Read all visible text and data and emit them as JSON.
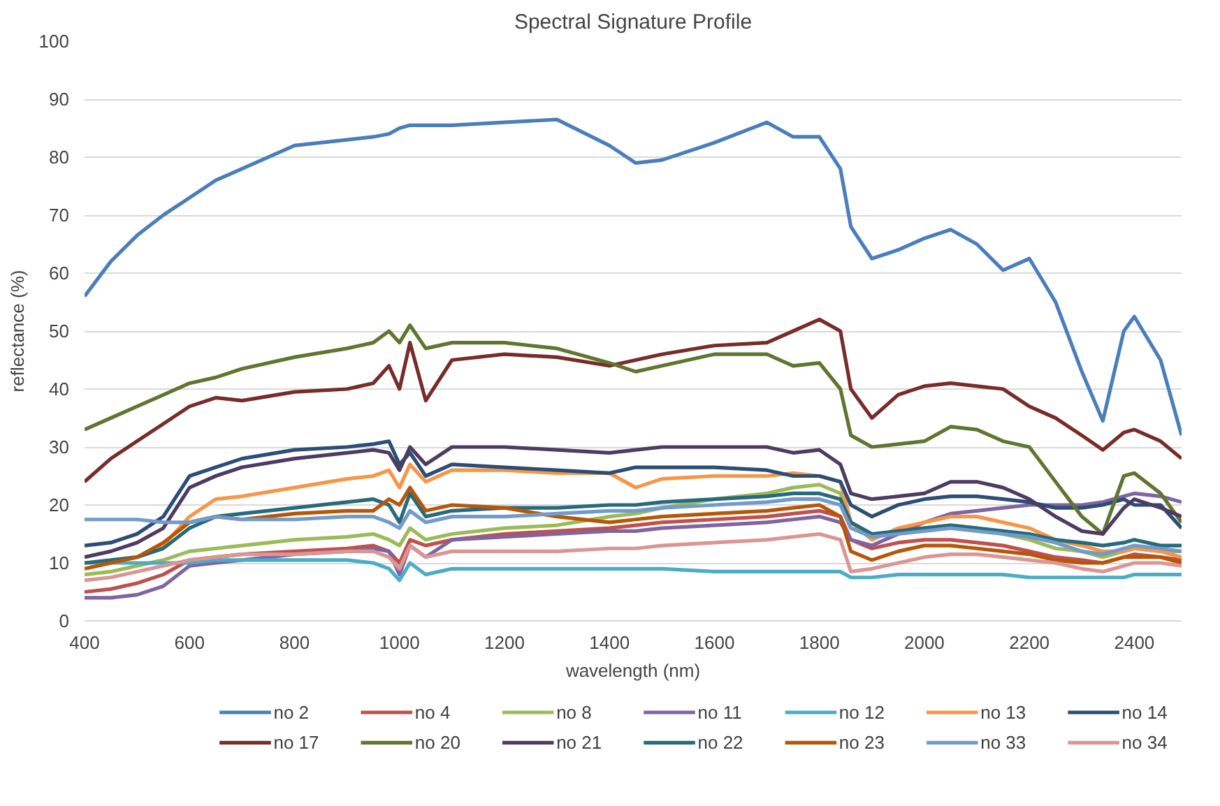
{
  "chart_data": {
    "type": "line",
    "title": "Spectral Signature Profile",
    "xlabel": "wavelength (nm)",
    "ylabel": "reflectance (%)",
    "x": [
      400,
      450,
      500,
      550,
      600,
      650,
      700,
      800,
      900,
      950,
      980,
      1000,
      1020,
      1050,
      1100,
      1200,
      1300,
      1400,
      1450,
      1500,
      1600,
      1700,
      1750,
      1800,
      1840,
      1860,
      1900,
      1950,
      2000,
      2050,
      2100,
      2150,
      2200,
      2250,
      2300,
      2340,
      2380,
      2400,
      2450,
      2490
    ],
    "xlim": [
      400,
      2490
    ],
    "xticks": [
      400,
      600,
      800,
      1000,
      1200,
      1400,
      1600,
      1800,
      2000,
      2200,
      2400
    ],
    "ylim": [
      0,
      100
    ],
    "yticks": [
      0,
      10,
      20,
      30,
      40,
      50,
      60,
      70,
      80,
      90,
      100
    ],
    "grid": "y",
    "legend": "bottom",
    "marker": "none",
    "line_style": "solid",
    "series": [
      {
        "name": "no 2",
        "color": "#4a7ebb",
        "values": [
          56,
          62,
          66.5,
          70,
          73,
          76,
          78,
          82,
          83,
          83.5,
          84,
          85,
          85.5,
          85.5,
          85.5,
          86,
          86.5,
          82,
          79,
          79.5,
          82.5,
          86,
          83.5,
          83.5,
          78,
          68,
          62.5,
          64,
          66,
          67.5,
          65,
          60.5,
          62.5,
          55,
          43,
          34.5,
          50,
          52.5,
          45,
          32
        ]
      },
      {
        "name": "no 4",
        "color": "#c0504d",
        "values": [
          5,
          5.5,
          6.5,
          8,
          10.5,
          11,
          11.5,
          12,
          12.5,
          13,
          12,
          10,
          14,
          13,
          14,
          15,
          15.5,
          16,
          16.5,
          17,
          17.5,
          18,
          18.5,
          19,
          18,
          14,
          12.5,
          13.5,
          14,
          14,
          13.5,
          13,
          12,
          11,
          10.5,
          10,
          11,
          11.5,
          11,
          10.5
        ]
      },
      {
        "name": "no 8",
        "color": "#9bbb59",
        "values": [
          8,
          8.5,
          9.5,
          10.5,
          12,
          12.5,
          13,
          14,
          14.5,
          15,
          14,
          13,
          16,
          14,
          15,
          16,
          16.5,
          18,
          18.5,
          19.5,
          21,
          22,
          23,
          23.5,
          22,
          17,
          14.5,
          15.5,
          16,
          16.5,
          16,
          15,
          14,
          12.5,
          12,
          11,
          12,
          12.5,
          12,
          12
        ]
      },
      {
        "name": "no 11",
        "color": "#8064a2",
        "values": [
          4,
          4,
          4.5,
          6,
          9.5,
          10,
          10.5,
          11.5,
          12,
          12.5,
          12,
          8,
          13,
          11,
          14,
          14.5,
          15,
          15.5,
          15.5,
          16,
          16.5,
          17,
          17.5,
          18,
          17,
          14,
          13,
          15,
          17,
          18.5,
          19,
          19.5,
          20,
          20,
          20,
          20.5,
          21.5,
          22,
          21.5,
          20.5
        ]
      },
      {
        "name": "no 12",
        "color": "#4bacc6",
        "values": [
          10,
          10,
          10,
          10,
          10,
          10.5,
          10.5,
          10.5,
          10.5,
          10,
          9,
          7,
          10,
          8,
          9,
          9,
          9,
          9,
          9,
          9,
          8.5,
          8.5,
          8.5,
          8.5,
          8.5,
          7.5,
          7.5,
          8,
          8,
          8,
          8,
          8,
          7.5,
          7.5,
          7.5,
          7.5,
          7.5,
          8,
          8,
          8
        ]
      },
      {
        "name": "no 13",
        "color": "#f79646",
        "values": [
          9,
          10,
          11,
          13,
          18,
          21,
          21.5,
          23,
          24.5,
          25,
          26,
          23,
          27,
          24,
          26,
          26,
          25.5,
          25.5,
          23,
          24.5,
          25,
          25,
          25.5,
          25,
          24,
          17,
          14,
          16,
          17,
          18,
          18,
          17,
          16,
          14,
          13,
          12,
          12,
          12.5,
          12,
          11
        ]
      },
      {
        "name": "no 14",
        "color": "#2c4d75",
        "values": [
          13,
          13.5,
          15,
          18,
          25,
          26.5,
          28,
          29.5,
          30,
          30.5,
          31,
          27,
          29,
          25,
          27,
          26.5,
          26,
          25.5,
          26.5,
          26.5,
          26.5,
          26,
          25,
          25,
          24,
          20,
          18,
          20,
          21,
          21.5,
          21.5,
          21,
          20.5,
          19.5,
          19.5,
          20,
          21,
          20,
          20,
          16
        ]
      },
      {
        "name": "no 17",
        "color": "#772c2a",
        "values": [
          24,
          28,
          31,
          34,
          37,
          38.5,
          38,
          39.5,
          40,
          41,
          44,
          40,
          48,
          38,
          45,
          46,
          45.5,
          44,
          45,
          46,
          47.5,
          48,
          50,
          52,
          50,
          40,
          35,
          39,
          40.5,
          41,
          40.5,
          40,
          37,
          35,
          32,
          29.5,
          32.5,
          33,
          31,
          28
        ]
      },
      {
        "name": "no 20",
        "color": "#5f7530",
        "values": [
          33,
          35,
          37,
          39,
          41,
          42,
          43.5,
          45.5,
          47,
          48,
          50,
          48,
          51,
          47,
          48,
          48,
          47,
          44.5,
          43,
          44,
          46,
          46,
          44,
          44.5,
          40,
          32,
          30,
          30.5,
          31,
          33.5,
          33,
          31,
          30,
          24,
          18,
          15,
          25,
          25.5,
          22,
          17
        ]
      },
      {
        "name": "no 21",
        "color": "#4d3b62",
        "values": [
          11,
          12,
          13.5,
          16,
          23,
          25,
          26.5,
          28,
          29,
          29.5,
          29,
          26,
          30,
          27,
          30,
          30,
          29.5,
          29,
          29.5,
          30,
          30,
          30,
          29,
          29.5,
          27,
          22,
          21,
          21.5,
          22,
          24,
          24,
          23,
          21,
          18,
          15.5,
          15,
          19.5,
          21,
          19.5,
          18
        ]
      },
      {
        "name": "no 22",
        "color": "#276a7c",
        "values": [
          10,
          10.5,
          11,
          12.5,
          16,
          18,
          18.5,
          19.5,
          20.5,
          21,
          20,
          17,
          22,
          18,
          19,
          19.5,
          19.5,
          20,
          20,
          20.5,
          21,
          21.5,
          22,
          22,
          21,
          17,
          15,
          15.5,
          16,
          16.5,
          16,
          15.5,
          15,
          14,
          13.5,
          13,
          13.5,
          14,
          13,
          13
        ]
      },
      {
        "name": "no 23",
        "color": "#b65708",
        "values": [
          9,
          10,
          11,
          13.5,
          17,
          18,
          17.5,
          18.5,
          19,
          19,
          21,
          20,
          23,
          19,
          20,
          19.5,
          18,
          17,
          17.5,
          18,
          18.5,
          19,
          19.5,
          20,
          18,
          12,
          10.5,
          12,
          13,
          13,
          12.5,
          12,
          11.5,
          10.5,
          10,
          10,
          11,
          11,
          11,
          10
        ]
      },
      {
        "name": "no 33",
        "color": "#729aca",
        "values": [
          17.5,
          17.5,
          17.5,
          17,
          17,
          18,
          17.5,
          17.5,
          18,
          18,
          17,
          16,
          19,
          17,
          18,
          18,
          18.5,
          19,
          19,
          19.5,
          20,
          20.5,
          21,
          21,
          20,
          16,
          14.5,
          15,
          15.5,
          16,
          15.5,
          15,
          14.5,
          13.5,
          12,
          11.5,
          12.5,
          13,
          12.5,
          12
        ]
      },
      {
        "name": "no 34",
        "color": "#d99694",
        "values": [
          7,
          7.5,
          8.5,
          9.5,
          10.5,
          11,
          11.5,
          11.5,
          12,
          12,
          11,
          9,
          13,
          11,
          12,
          12,
          12,
          12.5,
          12.5,
          13,
          13.5,
          14,
          14.5,
          15,
          14,
          8.5,
          9,
          10,
          11,
          11.5,
          11.5,
          11,
          10.5,
          10,
          9,
          8.5,
          9.5,
          10,
          10,
          9.5
        ]
      }
    ]
  }
}
